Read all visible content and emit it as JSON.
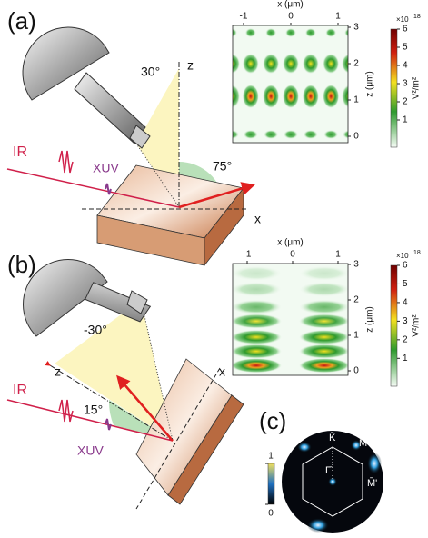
{
  "panel_a": {
    "label": "(a)",
    "angle_objective": "30°",
    "angle_reflect": "75°",
    "axis_z": "z",
    "axis_x": "x",
    "beam_ir": "IR",
    "beam_xuv": "XUV",
    "map": {
      "x_label": "x (μm)",
      "y_label": "z (μm)",
      "xticks": [
        -1,
        0,
        1
      ],
      "yticks": [
        0,
        1,
        2,
        3
      ],
      "colorbar_scale": "×10",
      "colorbar_exponent": "18",
      "colorbar_label": "V²/m²",
      "colorbar_ticks": [
        1,
        2,
        3,
        4,
        5,
        6
      ]
    }
  },
  "panel_b": {
    "label": "(b)",
    "angle_objective": "-30°",
    "angle_incidence": "15°",
    "axis_z": "z",
    "axis_x": "x",
    "beam_ir": "IR",
    "beam_xuv": "XUV",
    "map": {
      "x_label": "x (μm)",
      "y_label": "z (μm)",
      "xticks": [
        -1,
        0,
        1
      ],
      "yticks": [
        0,
        1,
        2,
        3
      ],
      "colorbar_scale": "×10",
      "colorbar_exponent": "18",
      "colorbar_label": "V²/m²",
      "colorbar_ticks": [
        1,
        2,
        3,
        4,
        5,
        6
      ]
    }
  },
  "panel_c": {
    "label": "(c)",
    "points": [
      "K̄",
      "M̄",
      "Γ̄",
      "M̄'"
    ],
    "colorbar_ticks": [
      0,
      1
    ]
  }
}
